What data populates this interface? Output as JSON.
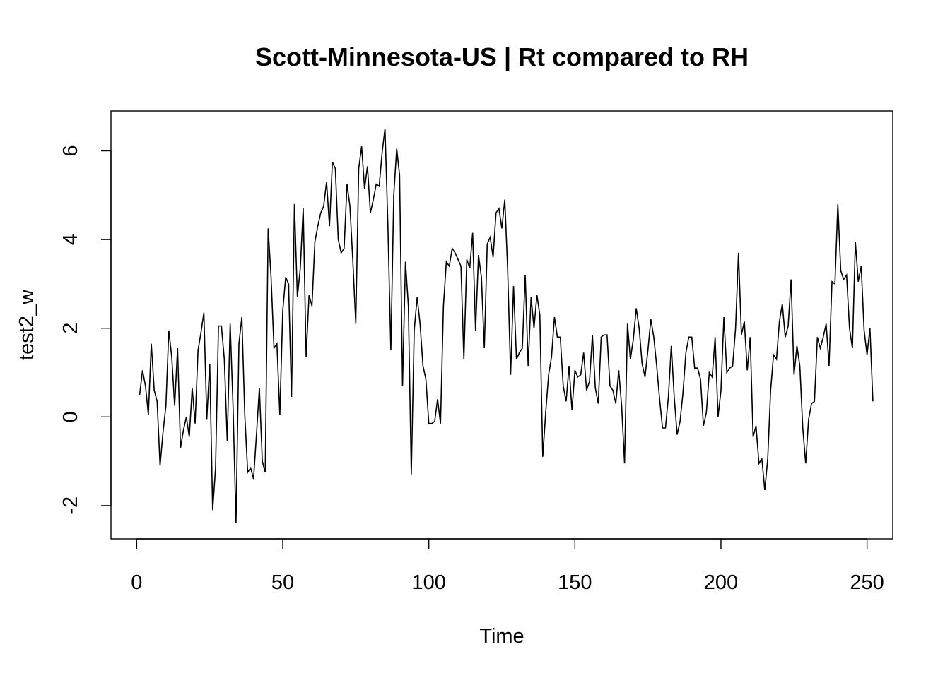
{
  "chart_data": {
    "type": "line",
    "title": "Scott-Minnesota-US | Rt compared to RH",
    "xlabel": "Time",
    "ylabel": "test2_w",
    "xlim": [
      -8.8,
      258.8
    ],
    "ylim": [
      -2.75,
      6.9
    ],
    "xticks": [
      0,
      50,
      100,
      150,
      200,
      250
    ],
    "yticks": [
      -2,
      0,
      2,
      4,
      6
    ],
    "grid": false,
    "legend": "none",
    "line_color": "#000000",
    "series": [
      {
        "x_start": 1,
        "x_step": 1,
        "values": [
          0.5,
          1.05,
          0.7,
          0.05,
          1.65,
          0.6,
          0.35,
          -1.1,
          -0.35,
          0.25,
          1.95,
          1.35,
          0.25,
          1.55,
          -0.7,
          -0.3,
          0.0,
          -0.45,
          0.65,
          -0.15,
          1.5,
          1.9,
          2.35,
          -0.05,
          1.2,
          -2.1,
          -1.15,
          2.05,
          2.05,
          1.3,
          -0.55,
          2.1,
          0.2,
          -2.4,
          1.65,
          2.25,
          0.05,
          -1.25,
          -1.15,
          -1.4,
          -0.4,
          0.65,
          -1.0,
          -1.25,
          4.25,
          3.15,
          1.55,
          1.65,
          0.05,
          2.4,
          3.15,
          3.0,
          0.45,
          4.8,
          2.7,
          3.35,
          4.7,
          1.35,
          2.75,
          2.5,
          3.95,
          4.3,
          4.6,
          4.75,
          5.3,
          4.3,
          5.75,
          5.6,
          4.0,
          3.7,
          3.8,
          5.25,
          4.75,
          3.5,
          2.1,
          5.6,
          6.1,
          5.15,
          5.65,
          4.6,
          4.9,
          5.25,
          5.2,
          5.95,
          6.5,
          4.3,
          1.5,
          5.0,
          6.05,
          5.45,
          0.7,
          3.5,
          2.5,
          -1.3,
          1.95,
          2.7,
          2.1,
          1.15,
          0.85,
          -0.15,
          -0.15,
          -0.1,
          0.4,
          -0.15,
          2.5,
          3.5,
          3.4,
          3.8,
          3.7,
          3.55,
          3.4,
          1.3,
          3.55,
          3.35,
          4.15,
          1.95,
          3.65,
          3.15,
          1.55,
          3.9,
          4.05,
          3.6,
          4.6,
          4.7,
          4.25,
          4.9,
          3.3,
          0.95,
          2.95,
          1.3,
          1.45,
          1.55,
          3.2,
          1.15,
          2.7,
          2.0,
          2.75,
          2.3,
          -0.9,
          0.1,
          0.95,
          1.35,
          2.25,
          1.8,
          1.8,
          0.7,
          0.35,
          1.15,
          0.15,
          1.05,
          0.9,
          0.95,
          1.45,
          0.6,
          0.8,
          1.85,
          0.65,
          0.3,
          1.8,
          1.85,
          1.85,
          0.7,
          0.6,
          0.3,
          1.05,
          0.25,
          -1.05,
          2.1,
          1.3,
          1.75,
          2.45,
          2.0,
          1.2,
          0.9,
          1.5,
          2.2,
          1.8,
          1.15,
          0.4,
          -0.25,
          -0.25,
          0.45,
          1.6,
          0.45,
          -0.4,
          -0.1,
          0.55,
          1.45,
          1.8,
          1.8,
          1.1,
          1.1,
          0.85,
          -0.2,
          0.1,
          1.0,
          0.9,
          1.8,
          0.0,
          0.6,
          2.25,
          1.0,
          1.1,
          1.15,
          2.0,
          3.7,
          1.85,
          2.15,
          1.05,
          1.8,
          -0.45,
          -0.2,
          -1.05,
          -0.95,
          -1.65,
          -0.95,
          0.6,
          1.4,
          1.3,
          2.15,
          2.55,
          1.8,
          2.05,
          3.1,
          0.95,
          1.6,
          1.15,
          -0.25,
          -1.05,
          -0.05,
          0.3,
          0.35,
          1.8,
          1.55,
          1.8,
          2.1,
          1.15,
          3.05,
          3.0,
          4.8,
          3.3,
          3.1,
          3.2,
          2.0,
          1.55,
          3.95,
          3.05,
          3.4,
          1.95,
          1.4,
          2.0,
          0.35
        ]
      }
    ]
  }
}
